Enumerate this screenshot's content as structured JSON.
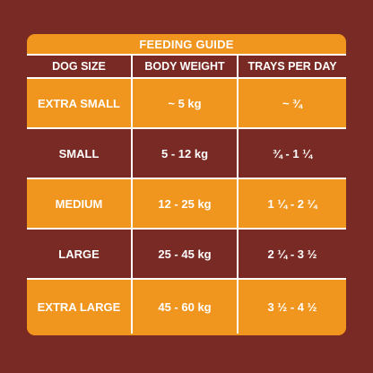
{
  "title": "FEEDING GUIDE",
  "headers": [
    "DOG SIZE",
    "BODY WEIGHT",
    "TRAYS PER DAY"
  ],
  "rows": [
    {
      "size": "EXTRA SMALL",
      "weight": "~ 5 kg",
      "trays": "~ ¾"
    },
    {
      "size": "SMALL",
      "weight": "5 - 12 kg",
      "trays": "¾ - 1 ¼"
    },
    {
      "size": "MEDIUM",
      "weight": "12 - 25 kg",
      "trays": "1 ¼ - 2 ¼"
    },
    {
      "size": "LARGE",
      "weight": "25 - 45 kg",
      "trays": "2 ¼ - 3 ½"
    },
    {
      "size": "EXTRA LARGE",
      "weight": "45 - 60 kg",
      "trays": "3 ½ - 4 ½"
    }
  ],
  "colors": {
    "background": "#7a2a24",
    "accent": "#f0951d",
    "text": "#ffffff"
  }
}
